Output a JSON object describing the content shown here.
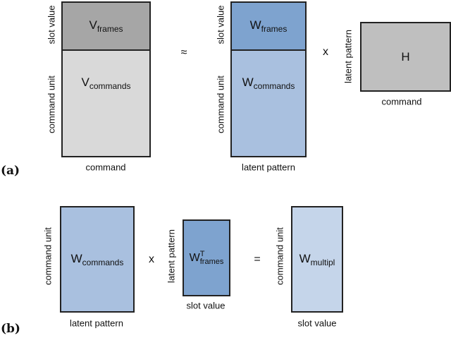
{
  "panel_a": {
    "label": "(a)",
    "V": {
      "top": "V",
      "top_sub": "frames",
      "bottom": "V",
      "bottom_sub": "commands",
      "row_top_label": "slot value",
      "row_bottom_label": "command unit",
      "col_label": "command"
    },
    "approx": "≈",
    "W": {
      "top": "W",
      "top_sub": "frames",
      "bottom": "W",
      "bottom_sub": "commands",
      "row_top_label": "slot value",
      "row_bottom_label": "command unit",
      "col_label": "latent pattern"
    },
    "times": "x",
    "H": {
      "name": "H",
      "row_label": "latent pattern",
      "col_label": "command"
    }
  },
  "panel_b": {
    "label": "(b)",
    "Wc": {
      "name": "W",
      "sub": "commands",
      "row_label": "command unit",
      "col_label": "latent pattern"
    },
    "times": "x",
    "Wf": {
      "name": "W",
      "sup": "T",
      "sub": "frames",
      "row_label": "latent pattern",
      "col_label": "slot value"
    },
    "equals": "=",
    "Wm": {
      "name": "W",
      "sub": "multipl",
      "row_label": "command unit",
      "col_label": "slot value"
    }
  },
  "colors": {
    "v_frames": "#a6a6a6",
    "v_commands": "#d9d9d9",
    "w_frames": "#7ea3cf",
    "w_commands": "#a9c0df",
    "h": "#bfbfbf",
    "w_multipl": "#c5d5ea"
  }
}
